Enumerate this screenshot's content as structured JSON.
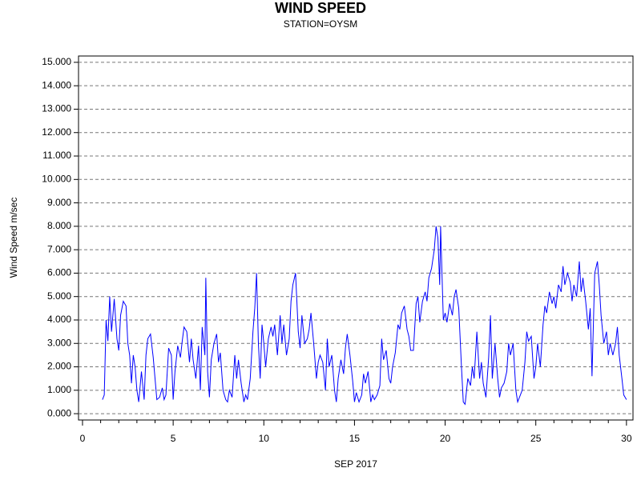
{
  "chart_data": {
    "type": "line",
    "title": "WIND SPEED",
    "subtitle": "STATION=OYSM",
    "x_label": "SEP 2017",
    "y_label": "Wind Speed m/sec",
    "grid": true,
    "xlim": [
      -0.22,
      30.36
    ],
    "ylim": [
      -0.27,
      15.27
    ],
    "xticks": [
      0,
      5,
      10,
      15,
      20,
      25,
      30
    ],
    "yticks": [
      {
        "value": 0,
        "label": "0.000"
      },
      {
        "value": 1,
        "label": "1.000"
      },
      {
        "value": 2,
        "label": "2.000"
      },
      {
        "value": 3,
        "label": "3.000"
      },
      {
        "value": 4,
        "label": "4.000"
      },
      {
        "value": 5,
        "label": "5.000"
      },
      {
        "value": 6,
        "label": "6.000"
      },
      {
        "value": 7,
        "label": "7.000"
      },
      {
        "value": 8,
        "label": "8.000"
      },
      {
        "value": 9,
        "label": "9.000"
      },
      {
        "value": 10,
        "label": "10.000"
      },
      {
        "value": 11,
        "label": "11.000"
      },
      {
        "value": 12,
        "label": "12.000"
      },
      {
        "value": 13,
        "label": "13.000"
      },
      {
        "value": 14,
        "label": "14.000"
      },
      {
        "value": 15,
        "label": "15.000"
      }
    ],
    "x": [
      1.1,
      1.2,
      1.3,
      1.4,
      1.5,
      1.6,
      1.75,
      1.9,
      2.0,
      2.1,
      2.25,
      2.4,
      2.5,
      2.6,
      2.7,
      2.8,
      2.9,
      3.0,
      3.1,
      3.25,
      3.4,
      3.5,
      3.6,
      3.75,
      3.9,
      4.0,
      4.1,
      4.25,
      4.4,
      4.5,
      4.6,
      4.75,
      4.9,
      5.0,
      5.1,
      5.25,
      5.4,
      5.5,
      5.6,
      5.75,
      5.9,
      6.0,
      6.1,
      6.25,
      6.4,
      6.5,
      6.6,
      6.75,
      6.8,
      6.9,
      7.0,
      7.1,
      7.25,
      7.4,
      7.5,
      7.6,
      7.75,
      7.9,
      8.0,
      8.1,
      8.25,
      8.4,
      8.5,
      8.6,
      8.75,
      8.9,
      9.0,
      9.1,
      9.25,
      9.4,
      9.5,
      9.6,
      9.7,
      9.8,
      9.9,
      10.0,
      10.1,
      10.25,
      10.4,
      10.5,
      10.6,
      10.75,
      10.9,
      11.0,
      11.1,
      11.25,
      11.4,
      11.5,
      11.6,
      11.75,
      11.9,
      12.0,
      12.1,
      12.25,
      12.4,
      12.5,
      12.6,
      12.75,
      12.9,
      13.0,
      13.1,
      13.25,
      13.4,
      13.5,
      13.6,
      13.75,
      13.9,
      14.0,
      14.1,
      14.25,
      14.4,
      14.5,
      14.6,
      14.75,
      14.9,
      15.0,
      15.1,
      15.25,
      15.4,
      15.5,
      15.6,
      15.75,
      15.9,
      16.0,
      16.1,
      16.25,
      16.4,
      16.5,
      16.6,
      16.75,
      16.9,
      17.0,
      17.1,
      17.25,
      17.4,
      17.5,
      17.6,
      17.75,
      17.9,
      18.0,
      18.1,
      18.25,
      18.4,
      18.5,
      18.6,
      18.75,
      18.9,
      19.0,
      19.1,
      19.25,
      19.4,
      19.5,
      19.6,
      19.7,
      19.75,
      19.9,
      20.0,
      20.1,
      20.25,
      20.4,
      20.5,
      20.6,
      20.75,
      20.9,
      21.0,
      21.1,
      21.25,
      21.4,
      21.5,
      21.6,
      21.75,
      21.9,
      22.0,
      22.1,
      22.25,
      22.4,
      22.5,
      22.6,
      22.75,
      22.9,
      23.0,
      23.1,
      23.25,
      23.4,
      23.5,
      23.6,
      23.75,
      23.9,
      24.0,
      24.1,
      24.25,
      24.4,
      24.5,
      24.6,
      24.75,
      24.9,
      25.0,
      25.1,
      25.25,
      25.4,
      25.5,
      25.6,
      25.75,
      25.9,
      26.0,
      26.1,
      26.25,
      26.4,
      26.5,
      26.6,
      26.75,
      26.9,
      27.0,
      27.1,
      27.25,
      27.4,
      27.5,
      27.6,
      27.75,
      27.9,
      28.0,
      28.1,
      28.25,
      28.4,
      28.5,
      28.6,
      28.75,
      28.9,
      29.0,
      29.1,
      29.25,
      29.4,
      29.5,
      29.6,
      29.75,
      29.85,
      30.0
    ],
    "series": [
      {
        "name": "Wind Speed",
        "color": "#0000ff",
        "values": [
          0.6,
          0.8,
          4.0,
          3.1,
          5.0,
          3.5,
          4.9,
          3.2,
          2.7,
          4.2,
          4.8,
          4.6,
          3.0,
          2.5,
          1.3,
          2.5,
          2.0,
          1.0,
          0.5,
          1.8,
          0.6,
          2.5,
          3.2,
          3.4,
          2.4,
          1.5,
          0.6,
          0.7,
          1.1,
          0.6,
          0.8,
          2.8,
          2.5,
          0.6,
          1.8,
          2.9,
          2.4,
          3.1,
          3.7,
          3.5,
          2.2,
          3.2,
          2.3,
          1.5,
          2.9,
          1.0,
          3.7,
          2.5,
          5.8,
          1.8,
          0.7,
          2.3,
          3.0,
          3.4,
          2.2,
          2.6,
          1.0,
          0.6,
          0.5,
          1.0,
          0.7,
          2.5,
          1.5,
          2.3,
          1.3,
          0.5,
          0.8,
          0.6,
          1.5,
          3.5,
          4.5,
          6.0,
          3.0,
          1.5,
          3.8,
          3.0,
          2.0,
          3.2,
          3.7,
          3.3,
          3.8,
          2.5,
          4.2,
          3.0,
          3.8,
          2.5,
          3.2,
          4.8,
          5.5,
          6.0,
          3.5,
          2.8,
          4.2,
          3.0,
          3.2,
          3.6,
          4.3,
          3.0,
          1.5,
          2.2,
          2.5,
          2.2,
          1.0,
          3.2,
          2.0,
          2.5,
          1.0,
          0.5,
          1.5,
          2.3,
          1.7,
          2.8,
          3.4,
          2.5,
          1.4,
          0.5,
          0.9,
          0.5,
          0.8,
          1.7,
          1.3,
          1.8,
          0.5,
          0.8,
          0.6,
          0.8,
          1.2,
          3.2,
          2.3,
          2.7,
          1.5,
          1.3,
          2.0,
          2.6,
          3.8,
          3.6,
          4.3,
          4.6,
          3.6,
          3.3,
          2.7,
          2.7,
          4.7,
          5.0,
          3.9,
          4.8,
          5.2,
          4.8,
          5.8,
          6.2,
          7.0,
          8.0,
          7.5,
          5.5,
          8.0,
          4.0,
          4.3,
          3.9,
          4.7,
          4.2,
          5.0,
          5.3,
          4.5,
          2.0,
          0.5,
          0.4,
          1.5,
          1.2,
          2.0,
          1.5,
          3.5,
          1.5,
          2.2,
          1.3,
          0.7,
          2.4,
          4.2,
          1.5,
          3.0,
          1.5,
          0.7,
          1.1,
          1.3,
          1.8,
          3.0,
          2.5,
          3.0,
          1.0,
          0.5,
          0.7,
          1.0,
          2.2,
          3.5,
          3.1,
          3.3,
          1.5,
          2.0,
          3.0,
          2.0,
          3.8,
          4.6,
          4.3,
          5.2,
          4.7,
          5.0,
          4.5,
          5.5,
          5.2,
          6.3,
          5.5,
          6.0,
          5.6,
          4.8,
          5.5,
          5.0,
          6.5,
          5.2,
          5.8,
          4.8,
          3.6,
          4.5,
          1.6,
          6.0,
          6.5,
          5.5,
          4.2,
          3.0,
          3.5,
          2.5,
          3.0,
          2.5,
          3.0,
          3.7,
          2.5,
          1.5,
          0.8,
          0.6
        ]
      }
    ]
  }
}
